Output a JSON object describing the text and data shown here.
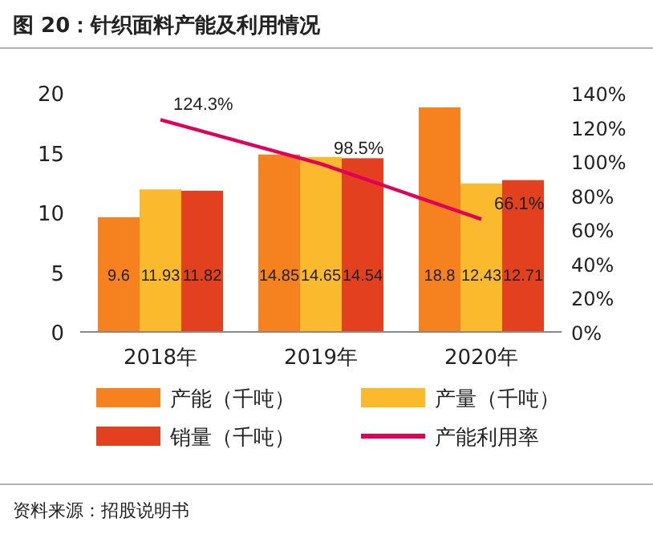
{
  "chart_data": {
    "type": "bar",
    "title": "图 20：针织面料产能及利用情况",
    "categories": [
      "2018年",
      "2019年",
      "2020年"
    ],
    "series": [
      {
        "name": "产能（千吨）",
        "color": "#f5821f",
        "values": [
          9.6,
          14.85,
          18.8
        ],
        "value_labels": [
          "9.6",
          "14.85",
          "18.8"
        ]
      },
      {
        "name": "产量（千吨）",
        "color": "#fbba2e",
        "values": [
          11.93,
          14.65,
          12.43
        ],
        "value_labels": [
          "11.93",
          "14.65",
          "12.43"
        ]
      },
      {
        "name": "销量（千吨）",
        "color": "#e2401f",
        "values": [
          11.82,
          14.54,
          12.71
        ],
        "value_labels": [
          "11.82",
          "14.54",
          "12.71"
        ]
      },
      {
        "name": "产能利用率",
        "type": "line",
        "axis": "y2",
        "color": "#e0005a",
        "values": [
          124.3,
          98.5,
          66.1
        ],
        "value_labels": [
          "124.3%",
          "98.5%",
          "66.1%"
        ]
      }
    ],
    "ylim": [
      0,
      20
    ],
    "yticks": [
      0,
      5,
      10,
      15,
      20
    ],
    "y2lim": [
      0,
      140
    ],
    "y2ticks": [
      {
        "value": 0,
        "label": "0%"
      },
      {
        "value": 20,
        "label": "20%"
      },
      {
        "value": 40,
        "label": "40%"
      },
      {
        "value": 60,
        "label": "60%"
      },
      {
        "value": 80,
        "label": "80%"
      },
      {
        "value": 100,
        "label": "100%"
      },
      {
        "value": 120,
        "label": "120%"
      },
      {
        "value": 140,
        "label": "140%"
      }
    ],
    "legend": "bottom",
    "grid": false,
    "annotations": [
      "资料来源：招股说明书"
    ]
  }
}
